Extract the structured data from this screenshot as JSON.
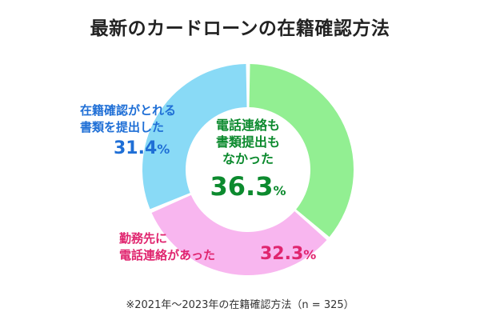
{
  "title": "最新のカードローンの在籍確認方法",
  "footnote": "※2021年〜2023年の在籍確認方法（n = 325）",
  "chart_data": {
    "type": "pie",
    "title": "最新のカードローンの在籍確認方法",
    "categories": [
      "電話連絡も書類提出もなかった",
      "勤務先に電話連絡があった",
      "在籍確認がとれる書類を提出した"
    ],
    "values": [
      36.3,
      32.3,
      31.4
    ],
    "unit": "%",
    "colors": [
      "#92ef92",
      "#f8b6ef",
      "#89daf6"
    ],
    "label_colors": [
      "#0c8a2e",
      "#e0256f",
      "#1f6fd6"
    ],
    "hole": true,
    "legend": "none",
    "labels": {
      "green": {
        "line1": "電話連絡も",
        "line2": "書類提出も",
        "line3": "なかった",
        "value": "36.3",
        "unit": "%"
      },
      "pink": {
        "line1": "勤務先に",
        "line2": "電話連絡があった",
        "value": "32.3",
        "unit": "%"
      },
      "blue": {
        "line1": "在籍確認がとれる",
        "line2": "書類を提出した",
        "value": "31.4",
        "unit": "%"
      }
    }
  }
}
